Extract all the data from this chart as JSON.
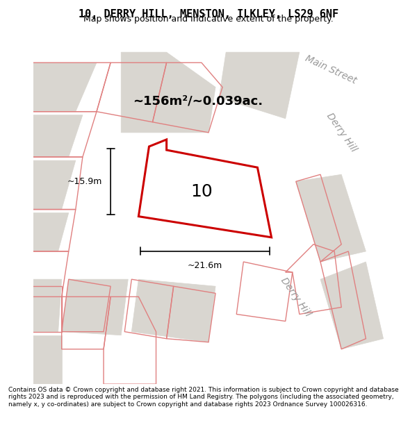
{
  "title": "10, DERRY HILL, MENSTON, ILKLEY, LS29 6NF",
  "subtitle": "Map shows position and indicative extent of the property.",
  "area_text": "~156m²/~0.039ac.",
  "property_number": "10",
  "dim_width": "~21.6m",
  "dim_height": "~15.9m",
  "footer": "Contains OS data © Crown copyright and database right 2021. This information is subject to Crown copyright and database rights 2023 and is reproduced with the permission of HM Land Registry. The polygons (including the associated geometry, namely x, y co-ordinates) are subject to Crown copyright and database rights 2023 Ordnance Survey 100026316.",
  "bg_color": "#f5f4f2",
  "map_bg": "#f0eeeb",
  "building_color": "#d9d6d0",
  "road_color": "#ffffff",
  "red_poly_color": "#cc0000",
  "street_label_color": "#999999",
  "footer_bg": "#ffffff",
  "main_street_label": "Main Street",
  "derry_hill_label1": "Derry Hill",
  "derry_hill_label2": "Derry Hill",
  "figsize": [
    6.0,
    6.25
  ],
  "dpi": 100
}
